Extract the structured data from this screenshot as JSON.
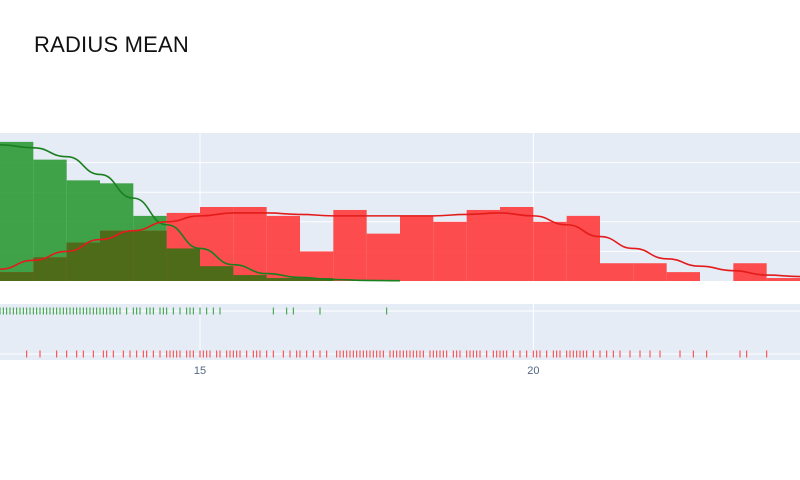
{
  "chart_data": {
    "type": "histogram-distplot",
    "title": "RADIUS MEAN",
    "xlabel": "",
    "ylabel": "",
    "xlim": [
      12.0,
      24.0
    ],
    "x_ticks": [
      15,
      20
    ],
    "bin_width": 0.5,
    "colors": {
      "benign": "#2e9a35",
      "malignant": "#ff3b3b",
      "overlap": "#4e6b1a",
      "plot_bg": "#e5ecf6",
      "grid": "#ffffff"
    },
    "series": [
      {
        "color": "#2e9a35",
        "bins": [
          {
            "x0": 12.0,
            "x1": 12.5,
            "density": 0.47
          },
          {
            "x0": 12.5,
            "x1": 13.0,
            "density": 0.41
          },
          {
            "x0": 13.0,
            "x1": 13.5,
            "density": 0.34
          },
          {
            "x0": 13.5,
            "x1": 14.0,
            "density": 0.33
          },
          {
            "x0": 14.0,
            "x1": 14.5,
            "density": 0.22
          },
          {
            "x0": 14.5,
            "x1": 15.0,
            "density": 0.11
          },
          {
            "x0": 15.0,
            "x1": 15.5,
            "density": 0.05
          },
          {
            "x0": 15.5,
            "x1": 16.0,
            "density": 0.02
          },
          {
            "x0": 16.0,
            "x1": 16.5,
            "density": 0.01
          },
          {
            "x0": 16.5,
            "x1": 17.0,
            "density": 0.01
          },
          {
            "x0": 17.0,
            "x1": 17.5,
            "density": 0.0
          }
        ],
        "kde": [
          [
            12.0,
            0.46
          ],
          [
            12.5,
            0.45
          ],
          [
            13.0,
            0.42
          ],
          [
            13.5,
            0.36
          ],
          [
            14.0,
            0.28
          ],
          [
            14.5,
            0.19
          ],
          [
            15.0,
            0.11
          ],
          [
            15.5,
            0.055
          ],
          [
            16.0,
            0.025
          ],
          [
            16.5,
            0.012
          ],
          [
            17.0,
            0.005
          ],
          [
            17.5,
            0.002
          ],
          [
            18.0,
            0.001
          ]
        ],
        "rug": [
          12.0,
          12.05,
          12.1,
          12.15,
          12.2,
          12.25,
          12.3,
          12.35,
          12.4,
          12.45,
          12.5,
          12.55,
          12.6,
          12.65,
          12.7,
          12.75,
          12.8,
          12.85,
          12.9,
          12.95,
          13.0,
          13.05,
          13.1,
          13.15,
          13.2,
          13.25,
          13.3,
          13.35,
          13.4,
          13.45,
          13.5,
          13.55,
          13.6,
          13.65,
          13.7,
          13.75,
          13.8,
          13.9,
          14.0,
          14.05,
          14.1,
          14.2,
          14.25,
          14.3,
          14.4,
          14.45,
          14.5,
          14.6,
          14.7,
          14.8,
          14.85,
          14.9,
          15.0,
          15.1,
          15.2,
          15.3,
          16.1,
          16.3,
          16.4,
          16.8,
          17.8
        ]
      },
      {
        "color": "#ff3b3b",
        "bins": [
          {
            "x0": 12.0,
            "x1": 12.5,
            "density": 0.03
          },
          {
            "x0": 12.5,
            "x1": 13.0,
            "density": 0.08
          },
          {
            "x0": 13.0,
            "x1": 13.5,
            "density": 0.13
          },
          {
            "x0": 13.5,
            "x1": 14.0,
            "density": 0.17
          },
          {
            "x0": 14.0,
            "x1": 14.5,
            "density": 0.17
          },
          {
            "x0": 14.5,
            "x1": 15.0,
            "density": 0.23
          },
          {
            "x0": 15.0,
            "x1": 15.5,
            "density": 0.25
          },
          {
            "x0": 15.5,
            "x1": 16.0,
            "density": 0.25
          },
          {
            "x0": 16.0,
            "x1": 16.5,
            "density": 0.22
          },
          {
            "x0": 16.5,
            "x1": 17.0,
            "density": 0.1
          },
          {
            "x0": 17.0,
            "x1": 17.5,
            "density": 0.24
          },
          {
            "x0": 17.5,
            "x1": 18.0,
            "density": 0.16
          },
          {
            "x0": 18.0,
            "x1": 18.5,
            "density": 0.22
          },
          {
            "x0": 18.5,
            "x1": 19.0,
            "density": 0.2
          },
          {
            "x0": 19.0,
            "x1": 19.5,
            "density": 0.24
          },
          {
            "x0": 19.5,
            "x1": 20.0,
            "density": 0.25
          },
          {
            "x0": 20.0,
            "x1": 20.5,
            "density": 0.2
          },
          {
            "x0": 20.5,
            "x1": 21.0,
            "density": 0.22
          },
          {
            "x0": 21.0,
            "x1": 21.5,
            "density": 0.06
          },
          {
            "x0": 21.5,
            "x1": 22.0,
            "density": 0.06
          },
          {
            "x0": 22.0,
            "x1": 22.5,
            "density": 0.03
          },
          {
            "x0": 22.5,
            "x1": 23.0,
            "density": 0.0
          },
          {
            "x0": 23.0,
            "x1": 23.5,
            "density": 0.06
          },
          {
            "x0": 23.5,
            "x1": 24.0,
            "density": 0.01
          }
        ],
        "kde": [
          [
            12.0,
            0.04
          ],
          [
            12.5,
            0.07
          ],
          [
            13.0,
            0.1
          ],
          [
            13.5,
            0.14
          ],
          [
            14.0,
            0.17
          ],
          [
            14.5,
            0.2
          ],
          [
            15.0,
            0.22
          ],
          [
            15.5,
            0.23
          ],
          [
            16.0,
            0.23
          ],
          [
            16.5,
            0.225
          ],
          [
            17.0,
            0.22
          ],
          [
            17.5,
            0.22
          ],
          [
            18.0,
            0.22
          ],
          [
            18.5,
            0.22
          ],
          [
            19.0,
            0.225
          ],
          [
            19.5,
            0.23
          ],
          [
            20.0,
            0.22
          ],
          [
            20.5,
            0.19
          ],
          [
            21.0,
            0.15
          ],
          [
            21.5,
            0.11
          ],
          [
            22.0,
            0.075
          ],
          [
            22.5,
            0.05
          ],
          [
            23.0,
            0.035
          ],
          [
            23.5,
            0.02
          ],
          [
            24.0,
            0.015
          ]
        ],
        "rug": [
          12.4,
          12.6,
          12.85,
          13.0,
          13.15,
          13.25,
          13.4,
          13.55,
          13.6,
          13.7,
          13.85,
          13.95,
          14.05,
          14.15,
          14.2,
          14.3,
          14.4,
          14.5,
          14.55,
          14.6,
          14.65,
          14.7,
          14.8,
          14.85,
          14.9,
          15.0,
          15.05,
          15.1,
          15.15,
          15.25,
          15.3,
          15.4,
          15.45,
          15.5,
          15.55,
          15.6,
          15.7,
          15.8,
          15.85,
          15.9,
          16.0,
          16.1,
          16.25,
          16.35,
          16.45,
          16.5,
          16.6,
          16.7,
          16.8,
          16.9,
          17.05,
          17.1,
          17.15,
          17.2,
          17.25,
          17.3,
          17.35,
          17.4,
          17.45,
          17.5,
          17.55,
          17.6,
          17.65,
          17.7,
          17.75,
          17.85,
          17.9,
          17.95,
          18.0,
          18.05,
          18.1,
          18.15,
          18.2,
          18.25,
          18.3,
          18.35,
          18.45,
          18.5,
          18.55,
          18.6,
          18.65,
          18.7,
          18.8,
          18.85,
          18.9,
          19.0,
          19.05,
          19.1,
          19.15,
          19.2,
          19.3,
          19.4,
          19.45,
          19.5,
          19.55,
          19.6,
          19.7,
          19.8,
          19.9,
          20.0,
          20.05,
          20.1,
          20.2,
          20.3,
          20.35,
          20.4,
          20.5,
          20.55,
          20.6,
          20.65,
          20.7,
          20.75,
          20.8,
          20.9,
          21.0,
          21.1,
          21.2,
          21.3,
          21.45,
          21.6,
          21.75,
          21.9,
          22.2,
          22.4,
          22.6,
          23.1,
          23.2,
          23.5
        ]
      }
    ]
  }
}
